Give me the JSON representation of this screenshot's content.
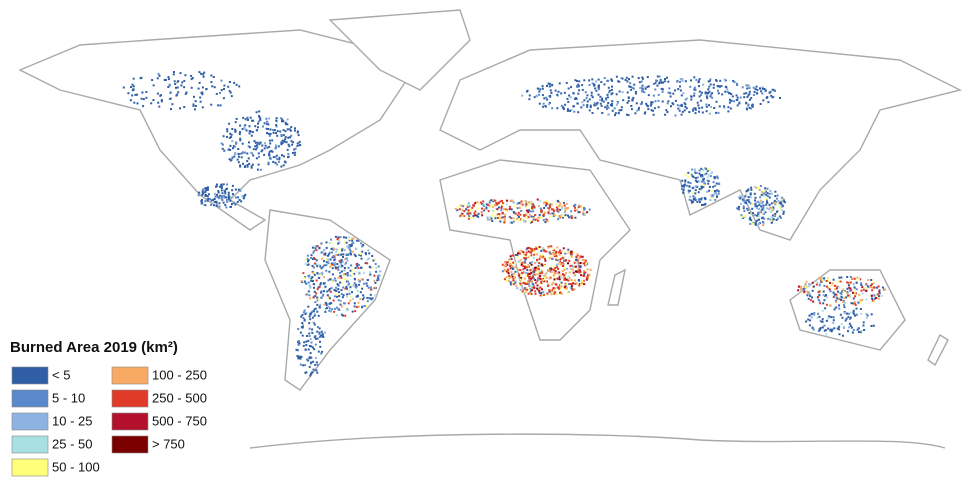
{
  "legend": {
    "title": "Burned Area 2019 (km²)",
    "classes": [
      {
        "label": "< 5",
        "color": "#2f5ea5"
      },
      {
        "label": "5 - 10",
        "color": "#5a8acb"
      },
      {
        "label": "10 - 25",
        "color": "#8db3e2"
      },
      {
        "label": "25 - 50",
        "color": "#a9e1e3"
      },
      {
        "label": "50 - 100",
        "color": "#ffff7a"
      },
      {
        "label": "100 - 250",
        "color": "#f9aa62"
      },
      {
        "label": "250 - 500",
        "color": "#e03b28"
      },
      {
        "label": "500 - 750",
        "color": "#b3102c"
      },
      {
        "label": "> 750",
        "color": "#7a0000"
      }
    ]
  }
}
